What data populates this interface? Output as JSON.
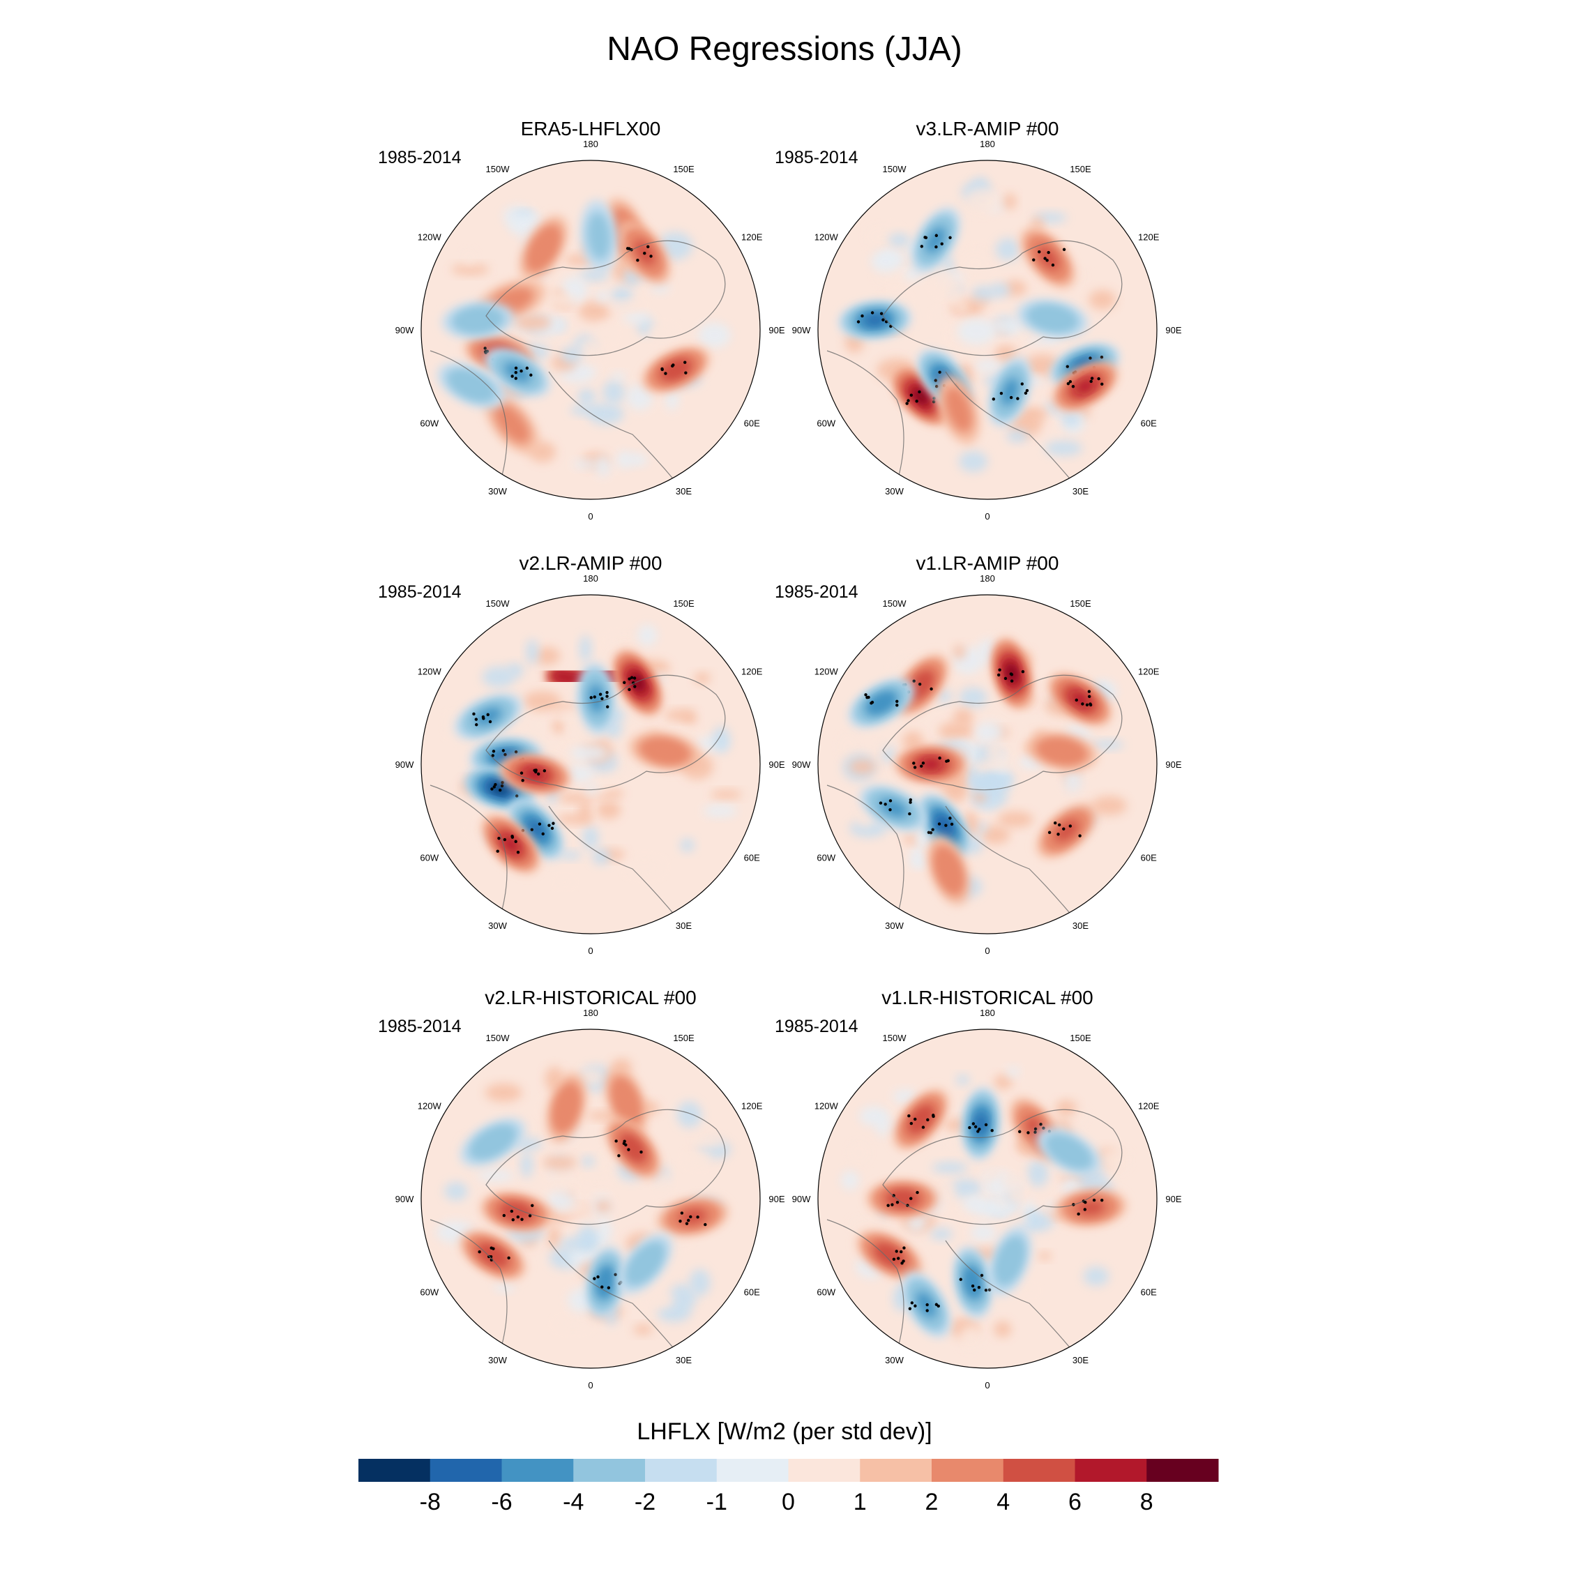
{
  "chart_data": {
    "type": "heatmap",
    "title": "NAO Regressions (JJA)",
    "colorbar": {
      "label": "LHFLX [W/m2 (per std dev)]",
      "levels": [
        -8,
        -6,
        -4,
        -2,
        -1,
        0,
        1,
        2,
        4,
        6,
        8
      ],
      "tick_labels": [
        "-8",
        "-6",
        "-4",
        "-2",
        "-1",
        "0",
        "1",
        "2",
        "4",
        "6",
        "8"
      ],
      "colors": [
        "#053061",
        "#2166ac",
        "#4393c3",
        "#92c5de",
        "#c6def0",
        "#e6eef5",
        "#fbe6dc",
        "#f6c0a6",
        "#e8896c",
        "#d05043",
        "#b2182b",
        "#67001f"
      ]
    },
    "longitude_labels": [
      "180",
      "150E",
      "120E",
      "90E",
      "60E",
      "30E",
      "0",
      "30W",
      "60W",
      "90W",
      "120W",
      "150W"
    ],
    "panels": [
      {
        "name": "ERA5-LHFLX00",
        "period": "1985-2014",
        "features": [
          {
            "type": "blob",
            "lon": 160,
            "lat": 35,
            "value": 3
          },
          {
            "type": "blob",
            "lon": -150,
            "lat": 40,
            "value": 3
          },
          {
            "type": "blob",
            "lon": -110,
            "lat": 45,
            "value": 2
          },
          {
            "type": "blob",
            "lon": 145,
            "lat": 40,
            "value": 4
          },
          {
            "type": "blob",
            "lon": -40,
            "lat": 25,
            "value": 2
          },
          {
            "type": "blob",
            "lon": -75,
            "lat": 40,
            "value": 5
          },
          {
            "type": "blob",
            "lon": -60,
            "lat": 45,
            "value": -4
          },
          {
            "type": "blob",
            "lon": 65,
            "lat": 40,
            "value": 5
          },
          {
            "type": "blob",
            "lon": 175,
            "lat": 40,
            "value": -2
          },
          {
            "type": "blob",
            "lon": -95,
            "lat": 30,
            "value": -3
          },
          {
            "type": "blob",
            "lon": -65,
            "lat": 20,
            "value": -3
          }
        ]
      },
      {
        "name": "v3.LR-AMIP  #00",
        "period": "1985-2014",
        "features": [
          {
            "type": "blob",
            "lon": -150,
            "lat": 35,
            "value": -4
          },
          {
            "type": "blob",
            "lon": 140,
            "lat": 40,
            "value": 4
          },
          {
            "type": "blob",
            "lon": -95,
            "lat": 30,
            "value": -6
          },
          {
            "type": "blob",
            "lon": -45,
            "lat": 40,
            "value": 8
          },
          {
            "type": "blob",
            "lon": -40,
            "lat": 55,
            "value": -6
          },
          {
            "type": "blob",
            "lon": 70,
            "lat": 35,
            "value": -6
          },
          {
            "type": "blob",
            "lon": 60,
            "lat": 30,
            "value": 6
          },
          {
            "type": "blob",
            "lon": 20,
            "lat": 55,
            "value": -4
          },
          {
            "type": "blob",
            "lon": -20,
            "lat": 45,
            "value": 2
          },
          {
            "type": "blob",
            "lon": 100,
            "lat": 55,
            "value": -3
          }
        ]
      },
      {
        "name": "v2.LR-AMIP  #00",
        "period": "1985-2014",
        "features": [
          {
            "type": "arc",
            "lon_start": -160,
            "lon_end": 165,
            "lat": 40,
            "value": 6
          },
          {
            "type": "blob",
            "lon": 150,
            "lat": 40,
            "value": 8
          },
          {
            "type": "blob",
            "lon": 175,
            "lat": 55,
            "value": -4
          },
          {
            "type": "blob",
            "lon": -115,
            "lat": 30,
            "value": -4
          },
          {
            "type": "blob",
            "lon": -95,
            "lat": 45,
            "value": -6
          },
          {
            "type": "blob",
            "lon": -75,
            "lat": 40,
            "value": -8
          },
          {
            "type": "blob",
            "lon": -80,
            "lat": 60,
            "value": 6
          },
          {
            "type": "blob",
            "lon": -40,
            "lat": 45,
            "value": -6
          },
          {
            "type": "blob",
            "lon": -45,
            "lat": 30,
            "value": 6
          },
          {
            "type": "blob",
            "lon": 100,
            "lat": 50,
            "value": 3
          }
        ]
      },
      {
        "name": "v1.LR-AMIP  #00",
        "period": "1985-2014",
        "features": [
          {
            "type": "blob",
            "lon": 165,
            "lat": 40,
            "value": 8
          },
          {
            "type": "blob",
            "lon": 125,
            "lat": 30,
            "value": 6
          },
          {
            "type": "blob",
            "lon": -140,
            "lat": 35,
            "value": 5
          },
          {
            "type": "blob",
            "lon": -120,
            "lat": 25,
            "value": -5
          },
          {
            "type": "blob",
            "lon": -90,
            "lat": 60,
            "value": 6
          },
          {
            "type": "blob",
            "lon": -35,
            "lat": 50,
            "value": -7
          },
          {
            "type": "blob",
            "lon": -65,
            "lat": 35,
            "value": -4
          },
          {
            "type": "blob",
            "lon": 50,
            "lat": 35,
            "value": 4
          },
          {
            "type": "blob",
            "lon": -20,
            "lat": 30,
            "value": 3
          },
          {
            "type": "blob",
            "lon": 100,
            "lat": 50,
            "value": 3
          }
        ]
      },
      {
        "name": "v2.LR-HISTORICAL  #00",
        "period": "1985-2014",
        "features": [
          {
            "type": "blob",
            "lon": 160,
            "lat": 35,
            "value": 3
          },
          {
            "type": "blob",
            "lon": -165,
            "lat": 40,
            "value": 3
          },
          {
            "type": "blob",
            "lon": 140,
            "lat": 55,
            "value": 5
          },
          {
            "type": "blob",
            "lon": -80,
            "lat": 50,
            "value": 5
          },
          {
            "type": "blob",
            "lon": -60,
            "lat": 30,
            "value": 5
          },
          {
            "type": "blob",
            "lon": 10,
            "lat": 45,
            "value": -5
          },
          {
            "type": "blob",
            "lon": 80,
            "lat": 35,
            "value": 4
          },
          {
            "type": "blob",
            "lon": -120,
            "lat": 30,
            "value": -3
          },
          {
            "type": "blob",
            "lon": 40,
            "lat": 45,
            "value": -3
          }
        ]
      },
      {
        "name": "v1.LR-HISTORICAL  #00",
        "period": "1985-2014",
        "features": [
          {
            "type": "blob",
            "lon": -175,
            "lat": 50,
            "value": -6
          },
          {
            "type": "blob",
            "lon": 145,
            "lat": 45,
            "value": 4
          },
          {
            "type": "blob",
            "lon": -140,
            "lat": 35,
            "value": 5
          },
          {
            "type": "blob",
            "lon": -90,
            "lat": 45,
            "value": 5
          },
          {
            "type": "blob",
            "lon": -60,
            "lat": 30,
            "value": 5
          },
          {
            "type": "blob",
            "lon": -10,
            "lat": 45,
            "value": -5
          },
          {
            "type": "blob",
            "lon": -30,
            "lat": 25,
            "value": -4
          },
          {
            "type": "blob",
            "lon": 20,
            "lat": 55,
            "value": -3
          },
          {
            "type": "blob",
            "lon": 85,
            "lat": 35,
            "value": 4
          },
          {
            "type": "blob",
            "lon": 120,
            "lat": 40,
            "value": -3
          }
        ]
      }
    ]
  }
}
